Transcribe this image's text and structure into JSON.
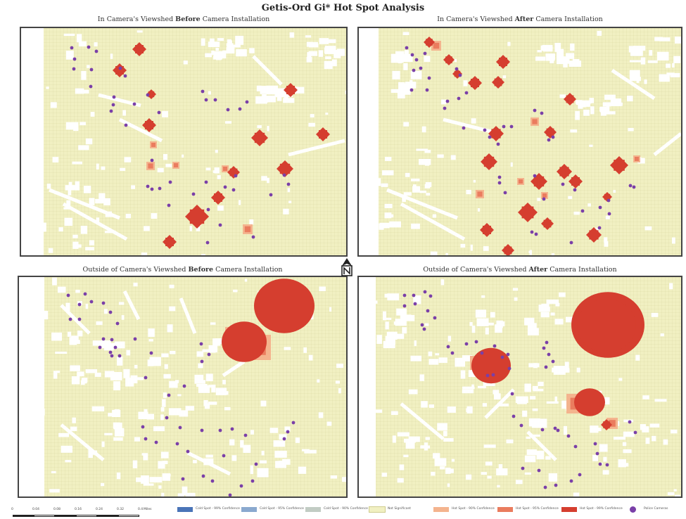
{
  "title": "Getis-Ord Gi* Hot Spot Analysis",
  "panels": {
    "in_before": {
      "prefix": "In Camera's Viewshed ",
      "emph": "Before",
      "suffix": " Camera Installation"
    },
    "in_after": {
      "prefix": "In Camera's Viewshed ",
      "emph": "After",
      "suffix": " Camera Installation"
    },
    "out_before": {
      "prefix": "Outside of Camera's Viewshed ",
      "emph": "Before",
      "suffix": " Camera Installation"
    },
    "out_after": {
      "prefix": "Outside of Camera's Viewshed ",
      "emph": "After",
      "suffix": " Camera Installation"
    }
  },
  "colors": {
    "grid_fill": "#f1f0c2",
    "grid_line": "#d9d6a0",
    "hot_99": "#d53e2f",
    "hot_95": "#ea7c5e",
    "hot_90": "#f4b48e",
    "camera": "#7a3fa8"
  },
  "scalebar": {
    "ticks": [
      "0",
      "0.04",
      "0.08",
      "0.16",
      "0.24",
      "0.32",
      "0.4"
    ],
    "unit": "Miles"
  },
  "legend": [
    {
      "label": "Cold Spot - 99% Confidence",
      "color": "#4a74b8",
      "icon": "swatch"
    },
    {
      "label": "Cold Spot - 95% Confidence",
      "color": "#8aa9cf",
      "icon": "swatch"
    },
    {
      "label": "Cold Spot - 90% Confidence",
      "color": "#c2ccc4",
      "icon": "swatch"
    },
    {
      "label": "Not Significant",
      "color": "#f1f0c2",
      "icon": "swatch"
    },
    {
      "label": "Hot Spot - 90% Confidence",
      "color": "#f4b48e",
      "icon": "swatch"
    },
    {
      "label": "Hot Spot - 95% Confidence",
      "color": "#ea7c5e",
      "icon": "swatch"
    },
    {
      "label": "Hot Spot - 99% Confidence",
      "color": "#d53e2f",
      "icon": "swatch"
    },
    {
      "label": "Police Cameras",
      "color": "#7a3fa8",
      "icon": "dot"
    }
  ]
}
